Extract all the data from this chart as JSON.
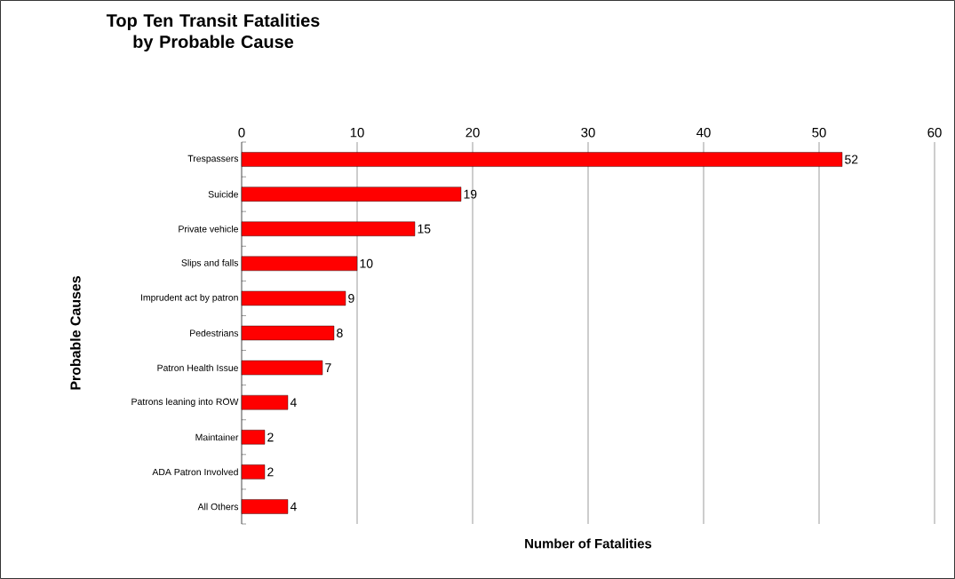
{
  "chart_data": {
    "type": "bar",
    "orientation": "horizontal",
    "title": "Top Ten Transit Fatalities by Probable Cause",
    "xlabel": "Number of Fatalities",
    "ylabel": "Probable Causes",
    "categories": [
      "Trespassers",
      "Suicide",
      "Private vehicle",
      "Slips and falls",
      "Imprudent act by patron",
      "Pedestrians",
      "Patron Health Issue",
      "Patrons leaning into ROW",
      "Maintainer",
      "ADA Patron Involved",
      "All Others"
    ],
    "values": [
      52,
      19,
      15,
      10,
      9,
      8,
      7,
      4,
      2,
      2,
      4
    ],
    "color": "#ff0000",
    "xlim": [
      0,
      60
    ],
    "xticks": [
      0,
      10,
      20,
      30,
      40,
      50,
      60
    ],
    "grid": "x",
    "data_labels": true
  }
}
